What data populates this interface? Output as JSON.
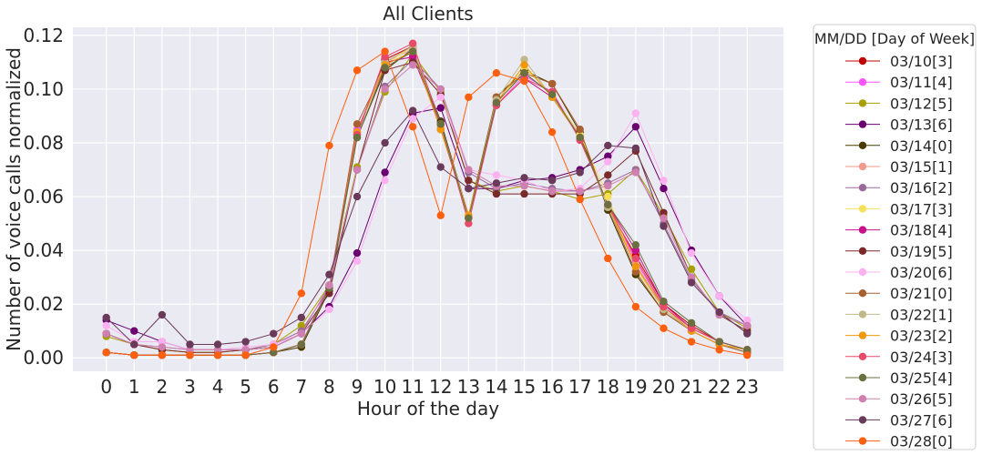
{
  "chart_data": {
    "type": "line",
    "title": "All Clients",
    "xlabel": "Hour of the day",
    "ylabel": "Number of voice calls normalized",
    "x": [
      0,
      1,
      2,
      3,
      4,
      5,
      6,
      7,
      8,
      9,
      10,
      11,
      12,
      13,
      14,
      15,
      16,
      17,
      18,
      19,
      20,
      21,
      22,
      23
    ],
    "x_tick_labels": [
      "0",
      "1",
      "2",
      "3",
      "4",
      "5",
      "6",
      "7",
      "8",
      "9",
      "10",
      "11",
      "12",
      "13",
      "14",
      "15",
      "16",
      "17",
      "18",
      "19",
      "20",
      "21",
      "22",
      "23"
    ],
    "ylim": [
      -0.005,
      0.123
    ],
    "y_ticks": [
      0.0,
      0.02,
      0.04,
      0.06,
      0.08,
      0.1,
      0.12
    ],
    "y_tick_labels": [
      "0.00",
      "0.02",
      "0.04",
      "0.06",
      "0.08",
      "0.10",
      "0.12"
    ],
    "grid": true,
    "legend": {
      "title": "MM/DD [Day of Week]",
      "placement": "outside-right"
    },
    "series": [
      {
        "name": "03/10[3]",
        "color": "#c00000",
        "values": [
          0.002,
          0.001,
          0.001,
          0.001,
          0.001,
          0.001,
          0.002,
          0.005,
          0.026,
          0.083,
          0.111,
          0.116,
          0.087,
          0.052,
          0.095,
          0.106,
          0.098,
          0.083,
          0.056,
          0.038,
          0.02,
          0.012,
          0.006,
          0.003
        ]
      },
      {
        "name": "03/11[4]",
        "color": "#ff55ff",
        "values": [
          0.002,
          0.001,
          0.001,
          0.001,
          0.001,
          0.001,
          0.002,
          0.005,
          0.027,
          0.085,
          0.108,
          0.114,
          0.088,
          0.053,
          0.094,
          0.105,
          0.099,
          0.082,
          0.057,
          0.036,
          0.019,
          0.011,
          0.006,
          0.003
        ]
      },
      {
        "name": "03/12[5]",
        "color": "#a89f00",
        "values": [
          0.008,
          0.005,
          0.003,
          0.002,
          0.002,
          0.003,
          0.005,
          0.012,
          0.027,
          0.071,
          0.099,
          0.113,
          0.099,
          0.066,
          0.062,
          0.064,
          0.062,
          0.059,
          0.061,
          0.07,
          0.053,
          0.033,
          0.017,
          0.011
        ]
      },
      {
        "name": "03/13[6]",
        "color": "#6a0070",
        "values": [
          0.014,
          0.01,
          0.006,
          0.003,
          0.003,
          0.003,
          0.004,
          0.009,
          0.019,
          0.039,
          0.069,
          0.091,
          0.093,
          0.063,
          0.063,
          0.066,
          0.067,
          0.07,
          0.075,
          0.086,
          0.063,
          0.04,
          0.023,
          0.012
        ]
      },
      {
        "name": "03/14[0]",
        "color": "#4a3a00",
        "values": [
          0.002,
          0.001,
          0.001,
          0.001,
          0.001,
          0.001,
          0.002,
          0.004,
          0.025,
          0.082,
          0.107,
          0.115,
          0.088,
          0.053,
          0.097,
          0.107,
          0.102,
          0.084,
          0.055,
          0.031,
          0.017,
          0.01,
          0.005,
          0.002
        ]
      },
      {
        "name": "03/15[1]",
        "color": "#f29a8a",
        "values": [
          0.002,
          0.001,
          0.001,
          0.001,
          0.001,
          0.001,
          0.002,
          0.005,
          0.026,
          0.084,
          0.11,
          0.115,
          0.086,
          0.053,
          0.094,
          0.104,
          0.097,
          0.082,
          0.057,
          0.035,
          0.018,
          0.01,
          0.005,
          0.003
        ]
      },
      {
        "name": "03/16[2]",
        "color": "#9a6b9a",
        "values": [
          0.009,
          0.005,
          0.004,
          0.003,
          0.003,
          0.003,
          0.005,
          0.01,
          0.026,
          0.07,
          0.101,
          0.111,
          0.1,
          0.069,
          0.063,
          0.065,
          0.063,
          0.062,
          0.065,
          0.07,
          0.05,
          0.029,
          0.017,
          0.012
        ]
      },
      {
        "name": "03/17[3]",
        "color": "#f5e05a",
        "values": [
          0.002,
          0.001,
          0.001,
          0.001,
          0.001,
          0.001,
          0.002,
          0.005,
          0.026,
          0.084,
          0.109,
          0.116,
          0.087,
          0.053,
          0.094,
          0.108,
          0.098,
          0.083,
          0.06,
          0.033,
          0.018,
          0.01,
          0.005,
          0.003
        ]
      },
      {
        "name": "03/18[4]",
        "color": "#c8108c",
        "values": [
          0.002,
          0.001,
          0.001,
          0.001,
          0.001,
          0.001,
          0.002,
          0.005,
          0.026,
          0.084,
          0.11,
          0.112,
          0.087,
          0.052,
          0.094,
          0.104,
          0.097,
          0.082,
          0.057,
          0.04,
          0.02,
          0.011,
          0.006,
          0.003
        ]
      },
      {
        "name": "03/19[5]",
        "color": "#7a2a2a",
        "values": [
          0.009,
          0.005,
          0.003,
          0.002,
          0.002,
          0.003,
          0.004,
          0.009,
          0.024,
          0.07,
          0.107,
          0.11,
          0.098,
          0.066,
          0.061,
          0.061,
          0.061,
          0.061,
          0.068,
          0.077,
          0.054,
          0.03,
          0.016,
          0.01
        ]
      },
      {
        "name": "03/20[6]",
        "color": "#ffb0f0",
        "values": [
          0.012,
          0.006,
          0.006,
          0.003,
          0.003,
          0.004,
          0.005,
          0.009,
          0.018,
          0.036,
          0.066,
          0.089,
          0.097,
          0.07,
          0.068,
          0.066,
          0.062,
          0.063,
          0.073,
          0.091,
          0.066,
          0.039,
          0.023,
          0.014
        ]
      },
      {
        "name": "03/21[0]",
        "color": "#a86030",
        "values": [
          0.002,
          0.001,
          0.001,
          0.001,
          0.001,
          0.001,
          0.002,
          0.005,
          0.026,
          0.087,
          0.108,
          0.114,
          0.085,
          0.052,
          0.097,
          0.106,
          0.102,
          0.085,
          0.056,
          0.032,
          0.017,
          0.01,
          0.005,
          0.002
        ]
      },
      {
        "name": "03/22[1]",
        "color": "#c0b888",
        "values": [
          0.002,
          0.001,
          0.001,
          0.001,
          0.001,
          0.001,
          0.002,
          0.005,
          0.026,
          0.084,
          0.11,
          0.116,
          0.087,
          0.052,
          0.096,
          0.111,
          0.097,
          0.082,
          0.056,
          0.034,
          0.018,
          0.01,
          0.005,
          0.003
        ]
      },
      {
        "name": "03/23[2]",
        "color": "#f0980a",
        "values": [
          0.002,
          0.001,
          0.001,
          0.001,
          0.001,
          0.001,
          0.002,
          0.005,
          0.026,
          0.084,
          0.109,
          0.114,
          0.085,
          0.053,
          0.095,
          0.109,
          0.097,
          0.082,
          0.057,
          0.034,
          0.019,
          0.01,
          0.005,
          0.003
        ]
      },
      {
        "name": "03/24[3]",
        "color": "#e84a6a",
        "values": [
          0.002,
          0.001,
          0.001,
          0.001,
          0.001,
          0.001,
          0.002,
          0.005,
          0.026,
          0.083,
          0.112,
          0.117,
          0.087,
          0.05,
          0.094,
          0.104,
          0.099,
          0.081,
          0.057,
          0.037,
          0.019,
          0.011,
          0.006,
          0.003
        ]
      },
      {
        "name": "03/25[4]",
        "color": "#6a7040",
        "values": [
          0.002,
          0.001,
          0.001,
          0.001,
          0.001,
          0.001,
          0.002,
          0.005,
          0.026,
          0.082,
          0.108,
          0.114,
          0.087,
          0.052,
          0.095,
          0.106,
          0.098,
          0.082,
          0.057,
          0.042,
          0.021,
          0.013,
          0.006,
          0.003
        ]
      },
      {
        "name": "03/26[5]",
        "color": "#d080b0",
        "values": [
          0.009,
          0.005,
          0.004,
          0.003,
          0.003,
          0.003,
          0.004,
          0.009,
          0.027,
          0.07,
          0.1,
          0.109,
          0.1,
          0.07,
          0.064,
          0.064,
          0.062,
          0.062,
          0.064,
          0.069,
          0.052,
          0.03,
          0.016,
          0.012
        ]
      },
      {
        "name": "03/27[6]",
        "color": "#6a3a5a",
        "values": [
          0.015,
          0.005,
          0.016,
          0.005,
          0.005,
          0.006,
          0.009,
          0.015,
          0.031,
          0.06,
          0.08,
          0.092,
          0.071,
          0.063,
          0.065,
          0.067,
          0.066,
          0.069,
          0.079,
          0.078,
          0.049,
          0.028,
          0.017,
          0.009
        ]
      },
      {
        "name": "03/28[0]",
        "color": "#ff6010",
        "values": [
          0.002,
          0.001,
          0.001,
          0.001,
          0.001,
          0.001,
          0.004,
          0.024,
          0.079,
          0.107,
          0.114,
          0.086,
          0.053,
          0.097,
          0.106,
          0.103,
          0.084,
          0.059,
          0.037,
          0.019,
          0.011,
          0.006,
          0.003,
          0.001
        ]
      }
    ]
  }
}
